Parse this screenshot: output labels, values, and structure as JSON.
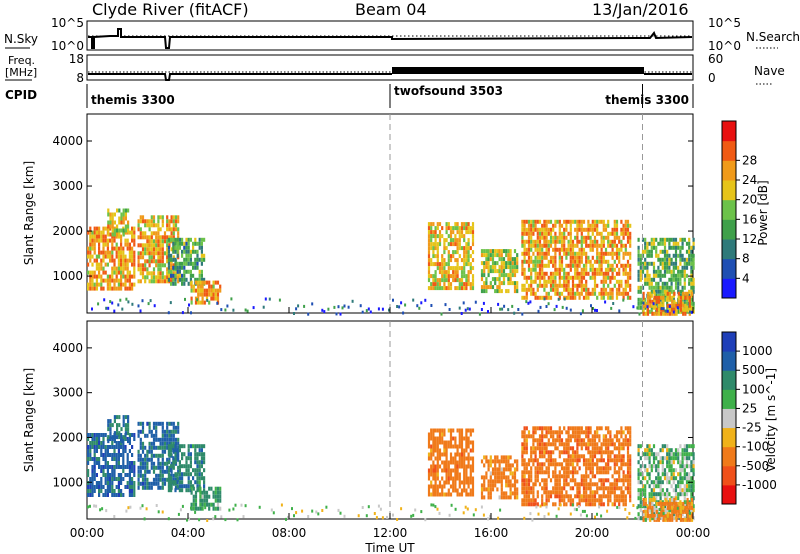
{
  "header": {
    "title": "Clyde River (fitACF)",
    "beam": "Beam 04",
    "date": "13/Jan/2016"
  },
  "aux_panels": {
    "nsky_label": "N.Sky",
    "nsky_ticks": [
      "10^5",
      "10^0"
    ],
    "nsearch_label": "N.Search",
    "nsearch_ticks": [
      "10^5",
      "10^0"
    ],
    "freq_label_1": "Freq.",
    "freq_label_2": "[MHz]",
    "freq_ticks": [
      "18",
      "8"
    ],
    "nave_label": "Nave",
    "nave_ticks": [
      "60",
      "0"
    ],
    "cpid_label": "CPID",
    "cpid_segments": [
      {
        "label": "themis 3300",
        "start": 0,
        "end": 12
      },
      {
        "label": "twofsound 3503",
        "start": 12,
        "end": 22
      },
      {
        "label": "themis 3300",
        "start": 22,
        "end": 24
      }
    ]
  },
  "x_axis": {
    "label": "Time UT",
    "ticks": [
      "00:00",
      "04:00",
      "08:00",
      "12:00",
      "16:00",
      "20:00",
      "00:00"
    ],
    "range_hours": [
      0,
      24
    ]
  },
  "y_axis": {
    "label": "Slant Range [km]",
    "ticks": [
      "1000",
      "2000",
      "3000",
      "4000"
    ],
    "range_km": [
      180,
      4600
    ]
  },
  "power_colorbar": {
    "label": "Power [dB]",
    "ticks": [
      "4",
      "8",
      "12",
      "16",
      "20",
      "24",
      "28"
    ],
    "colors": [
      "#1a1aff",
      "#1f4fb3",
      "#2f7a7a",
      "#3fa04a",
      "#6cc24a",
      "#e6c41a",
      "#f09a1a",
      "#f05a14",
      "#e81010"
    ]
  },
  "velocity_colorbar": {
    "label": "Velocity [m s^-1]",
    "ticks": [
      "1000",
      "500",
      "100",
      "25",
      "-25",
      "-100",
      "-500",
      "-1000"
    ],
    "colors": [
      "#1f3fb8",
      "#1f5fa8",
      "#2f8a6a",
      "#3fb04a",
      "#c8c8c8",
      "#f0b21a",
      "#f07a1a",
      "#f0501a",
      "#e81010"
    ]
  },
  "chart_data": {
    "type": "heatmap",
    "panels": [
      "Power",
      "Velocity"
    ],
    "xlabel": "Time UT",
    "ylabel": "Slant Range [km]",
    "xlim_hours": [
      0,
      24
    ],
    "ylim_km": [
      180,
      4600
    ],
    "mode_change_hours": [
      12,
      22
    ],
    "echo_regions": [
      {
        "t_start": 0.0,
        "t_end": 1.9,
        "range_min_km": 750,
        "range_max_km": 2100,
        "power_db": 26,
        "velocity_ms": 700
      },
      {
        "t_start": 0.8,
        "t_end": 1.6,
        "range_min_km": 1900,
        "range_max_km": 2500,
        "power_db": 22,
        "velocity_ms": 500
      },
      {
        "t_start": 2.0,
        "t_end": 3.6,
        "range_min_km": 900,
        "range_max_km": 2350,
        "power_db": 24,
        "velocity_ms": 600
      },
      {
        "t_start": 3.2,
        "t_end": 4.6,
        "range_min_km": 800,
        "range_max_km": 1850,
        "power_db": 14,
        "velocity_ms": 400
      },
      {
        "t_start": 4.1,
        "t_end": 5.3,
        "range_min_km": 400,
        "range_max_km": 900,
        "power_db": 26,
        "velocity_ms": 150
      },
      {
        "t_start": 13.5,
        "t_end": 15.3,
        "range_min_km": 750,
        "range_max_km": 2200,
        "power_db": 23,
        "velocity_ms": -300
      },
      {
        "t_start": 15.6,
        "t_end": 17.0,
        "range_min_km": 700,
        "range_max_km": 1600,
        "power_db": 20,
        "velocity_ms": -200
      },
      {
        "t_start": 17.2,
        "t_end": 21.5,
        "range_min_km": 550,
        "range_max_km": 2250,
        "power_db": 25,
        "velocity_ms": -350
      },
      {
        "t_start": 21.8,
        "t_end": 24.0,
        "range_min_km": 200,
        "range_max_km": 1850,
        "power_db": 16,
        "velocity_ms": 60
      },
      {
        "t_start": 22.0,
        "t_end": 24.0,
        "range_min_km": 200,
        "range_max_km": 650,
        "power_db": 27,
        "velocity_ms": -150
      }
    ]
  }
}
